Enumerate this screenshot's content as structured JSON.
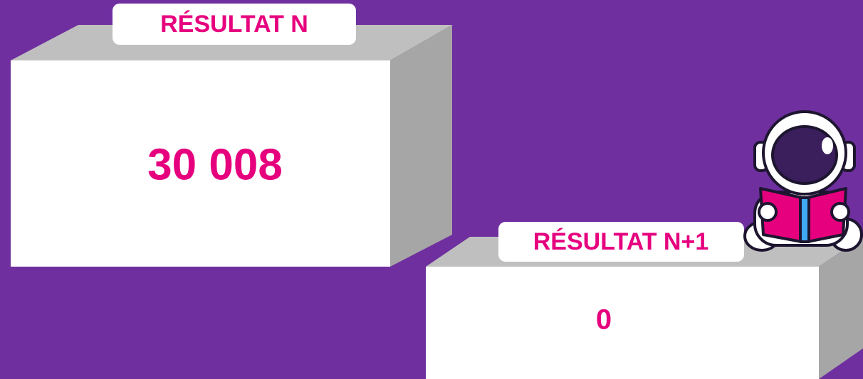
{
  "boxes": [
    {
      "label": "RÉSULTAT N",
      "value": "30 008"
    },
    {
      "label": "RÉSULTAT N+1",
      "value": "0"
    }
  ]
}
